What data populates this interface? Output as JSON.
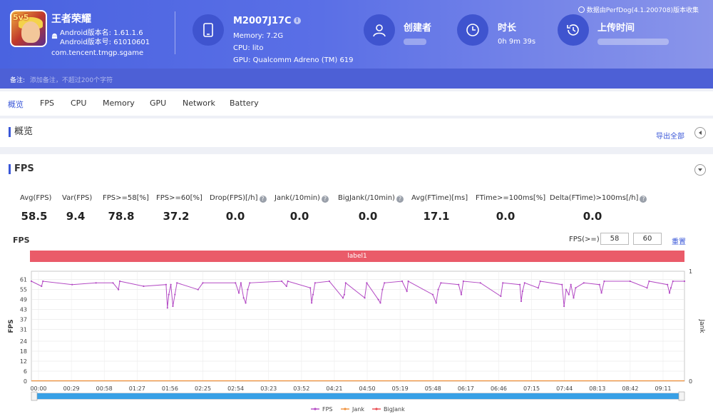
{
  "app": {
    "name": "王者荣耀",
    "badge": "5v5",
    "version_name": "Android版本名: 1.61.1.6",
    "version_code": "Android版本号: 61010601",
    "package": "com.tencent.tmgp.sgame"
  },
  "device": {
    "model": "M2007J17C",
    "memory": "Memory: 7.2G",
    "cpu": "CPU: lito",
    "gpu": "GPU: Qualcomm Adreno (TM) 619"
  },
  "creator": {
    "title": "创建者"
  },
  "duration": {
    "title": "时长",
    "value": "0h 9m 39s"
  },
  "upload": {
    "title": "上传时间"
  },
  "version_note": "数据由PerfDog(4.1.200708)版本收集",
  "note": {
    "label": "备注:",
    "placeholder": "添加备注，不超过200个字符"
  },
  "tabs": [
    "概览",
    "FPS",
    "CPU",
    "Memory",
    "GPU",
    "Network",
    "Battery"
  ],
  "overview": {
    "title": "概览",
    "export_label": "导出全部"
  },
  "fps_panel": {
    "title": "FPS"
  },
  "stats": [
    {
      "label": "Avg(FPS)",
      "value": "58.5",
      "help": false
    },
    {
      "label": "Var(FPS)",
      "value": "9.4",
      "help": false
    },
    {
      "label": "FPS>=58[%]",
      "value": "78.8",
      "help": false
    },
    {
      "label": "FPS>=60[%]",
      "value": "37.2",
      "help": false
    },
    {
      "label": "Drop(FPS)[/h]",
      "value": "0.0",
      "help": true
    },
    {
      "label": "Jank(/10min)",
      "value": "0.0",
      "help": true
    },
    {
      "label": "BigJank(/10min)",
      "value": "0.0",
      "help": true
    },
    {
      "label": "Avg(FTime)[ms]",
      "value": "17.1",
      "help": false
    },
    {
      "label": "FTime>=100ms[%]",
      "value": "0.0",
      "help": false
    },
    {
      "label": "Delta(FTime)>100ms[/h]",
      "value": "0.0",
      "help": true
    }
  ],
  "fps_filter": {
    "label": "FPS(>=)",
    "min": "58",
    "max": "60",
    "reset_label": "重置"
  },
  "chart_data": {
    "type": "line",
    "title": "FPS",
    "band_label": "label1",
    "ylabel": "FPS",
    "y2label": "Jank",
    "yticks": [
      0,
      6,
      12,
      18,
      24,
      31,
      37,
      43,
      49,
      55,
      61
    ],
    "ylim": [
      0,
      66
    ],
    "y2ticks": [
      0,
      1
    ],
    "xticks": [
      "00:00",
      "00:29",
      "00:58",
      "01:27",
      "01:56",
      "02:25",
      "02:54",
      "03:23",
      "03:52",
      "04:21",
      "04:50",
      "05:19",
      "05:48",
      "06:17",
      "06:46",
      "07:15",
      "07:44",
      "08:13",
      "08:42",
      "09:11"
    ],
    "x_max_seconds": 579,
    "series": [
      {
        "name": "FPS",
        "color": "#b34ac4"
      },
      {
        "name": "Jank",
        "color": "#f0913a"
      },
      {
        "name": "BigJank",
        "color": "#e84a50"
      }
    ],
    "fps_dips": [
      [
        0,
        60
      ],
      [
        15,
        57
      ],
      [
        17,
        60
      ],
      [
        60,
        58
      ],
      [
        95,
        59
      ],
      [
        120,
        59
      ],
      [
        128,
        55
      ],
      [
        130,
        60
      ],
      [
        165,
        57
      ],
      [
        198,
        58
      ],
      [
        200,
        44
      ],
      [
        202,
        52
      ],
      [
        205,
        58
      ],
      [
        208,
        45
      ],
      [
        211,
        52
      ],
      [
        214,
        59
      ],
      [
        245,
        55
      ],
      [
        252,
        59
      ],
      [
        300,
        59
      ],
      [
        305,
        53
      ],
      [
        308,
        59
      ],
      [
        312,
        50
      ],
      [
        315,
        47
      ],
      [
        318,
        55
      ],
      [
        321,
        59
      ],
      [
        368,
        60
      ],
      [
        375,
        57
      ],
      [
        377,
        60
      ],
      [
        410,
        56
      ],
      [
        412,
        47
      ],
      [
        414,
        52
      ],
      [
        417,
        59
      ],
      [
        438,
        60
      ],
      [
        458,
        50
      ],
      [
        460,
        52
      ],
      [
        462,
        59
      ],
      [
        490,
        50
      ],
      [
        493,
        59
      ],
      [
        510,
        49
      ],
      [
        513,
        47
      ],
      [
        516,
        55
      ],
      [
        519,
        59
      ],
      [
        545,
        60
      ],
      [
        552,
        54
      ],
      [
        554,
        60
      ],
      [
        590,
        52
      ],
      [
        595,
        47
      ],
      [
        598,
        55
      ],
      [
        602,
        59
      ],
      [
        628,
        58
      ],
      [
        632,
        52
      ],
      [
        635,
        60
      ],
      [
        660,
        59
      ],
      [
        690,
        51
      ],
      [
        693,
        59
      ],
      [
        718,
        58
      ],
      [
        720,
        48
      ],
      [
        722,
        54
      ],
      [
        725,
        59
      ],
      [
        745,
        56
      ],
      [
        748,
        60
      ],
      [
        780,
        58
      ],
      [
        783,
        45
      ],
      [
        786,
        55
      ],
      [
        790,
        52
      ],
      [
        793,
        58
      ],
      [
        797,
        50
      ],
      [
        800,
        56
      ],
      [
        812,
        59
      ],
      [
        835,
        58
      ],
      [
        838,
        53
      ],
      [
        842,
        60
      ],
      [
        880,
        60
      ],
      [
        905,
        56
      ],
      [
        908,
        60
      ],
      [
        935,
        58
      ],
      [
        938,
        53
      ],
      [
        940,
        56
      ],
      [
        943,
        60
      ],
      [
        960,
        60
      ]
    ],
    "jank_values": "all 0"
  }
}
